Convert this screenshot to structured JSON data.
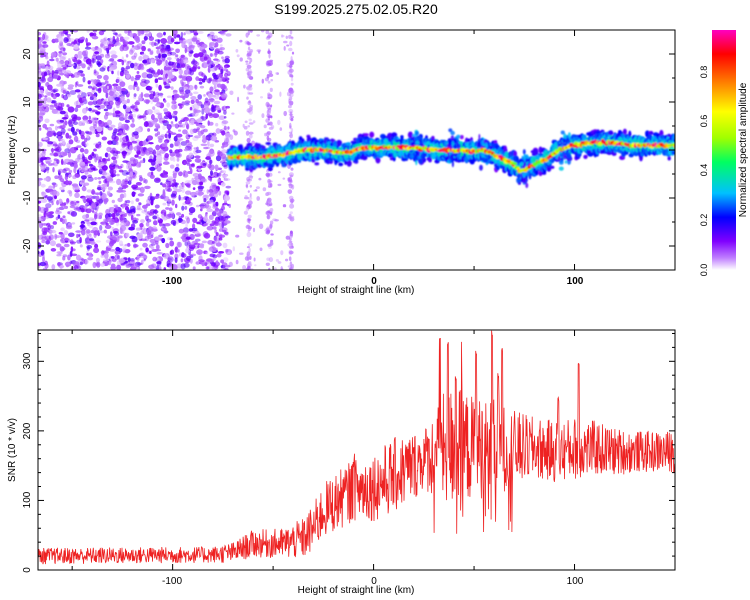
{
  "title": "S199.2025.275.02.05.R20",
  "chart_data": [
    {
      "type": "heatmap",
      "xlabel": "Height of straight line (km)",
      "ylabel": "Frequency (Hz)",
      "xlim": [
        -167,
        150
      ],
      "ylim": [
        -25,
        25
      ],
      "x_ticks": [
        "-100",
        "0",
        "100"
      ],
      "y_ticks": [
        "20",
        "10",
        "0",
        "-10",
        "-20"
      ],
      "colorbar": {
        "label": "Normalized spectral amplitude",
        "range": [
          0.0,
          0.96
        ],
        "ticks": [
          "0.0",
          "0.2",
          "0.4",
          "0.6",
          "0.8"
        ],
        "colors": [
          "#ffffff",
          "#c080ff",
          "#8000ff",
          "#0000ff",
          "#00c0ff",
          "#00ff60",
          "#a0ff00",
          "#ffff00",
          "#ff8000",
          "#ff0000",
          "#ff00c0"
        ]
      },
      "noise_region_x": [
        -167,
        -40
      ],
      "ridge": {
        "x": [
          -72,
          -65,
          -55,
          -45,
          -35,
          -25,
          -18,
          -12,
          -5,
          0,
          10,
          20,
          30,
          40,
          50,
          55,
          60,
          65,
          70,
          73,
          78,
          82,
          86,
          90,
          95,
          100,
          110,
          120,
          130,
          140,
          150
        ],
        "y": [
          -1.5,
          -1.5,
          -1.5,
          -1.0,
          0.0,
          0.0,
          -0.5,
          -0.5,
          0.5,
          0.5,
          0.5,
          0.5,
          0.0,
          0.0,
          -0.3,
          0.0,
          -1.0,
          -2.0,
          -3.0,
          -4.5,
          -3.5,
          -2.5,
          -2.0,
          -0.5,
          0.5,
          1.0,
          1.5,
          1.5,
          1.0,
          1.0,
          1.0
        ]
      }
    },
    {
      "type": "line",
      "xlabel": "Height of straight line (km)",
      "ylabel": "SNR (10 * v/v)",
      "xlim": [
        -167,
        150
      ],
      "ylim": [
        0,
        345
      ],
      "x_ticks": [
        "-100",
        "0",
        "100"
      ],
      "y_ticks": [
        "300",
        "200",
        "100",
        "0"
      ],
      "series": [
        {
          "color": "#ee2222",
          "envelope_x": [
            -167,
            -80,
            -70,
            -60,
            -45,
            -35,
            -30,
            -25,
            -10,
            0,
            10,
            20,
            25,
            30,
            35,
            40,
            50,
            60,
            70,
            80,
            90,
            100,
            110,
            120,
            130,
            140,
            150
          ],
          "envelope_mean": [
            20,
            22,
            25,
            38,
            38,
            45,
            60,
            85,
            115,
            120,
            135,
            150,
            160,
            165,
            175,
            180,
            175,
            175,
            175,
            175,
            170,
            175,
            175,
            170,
            170,
            170,
            170
          ],
          "envelope_spread": [
            12,
            12,
            15,
            20,
            22,
            30,
            35,
            40,
            45,
            50,
            55,
            50,
            45,
            60,
            80,
            90,
            75,
            70,
            55,
            45,
            45,
            45,
            40,
            35,
            30,
            30,
            30
          ],
          "peaks_x": [
            33,
            37,
            41,
            44,
            51,
            59,
            62,
            64,
            102,
            92
          ],
          "peaks_y": [
            335,
            330,
            280,
            330,
            315,
            345,
            285,
            320,
            300,
            250
          ]
        }
      ]
    }
  ]
}
